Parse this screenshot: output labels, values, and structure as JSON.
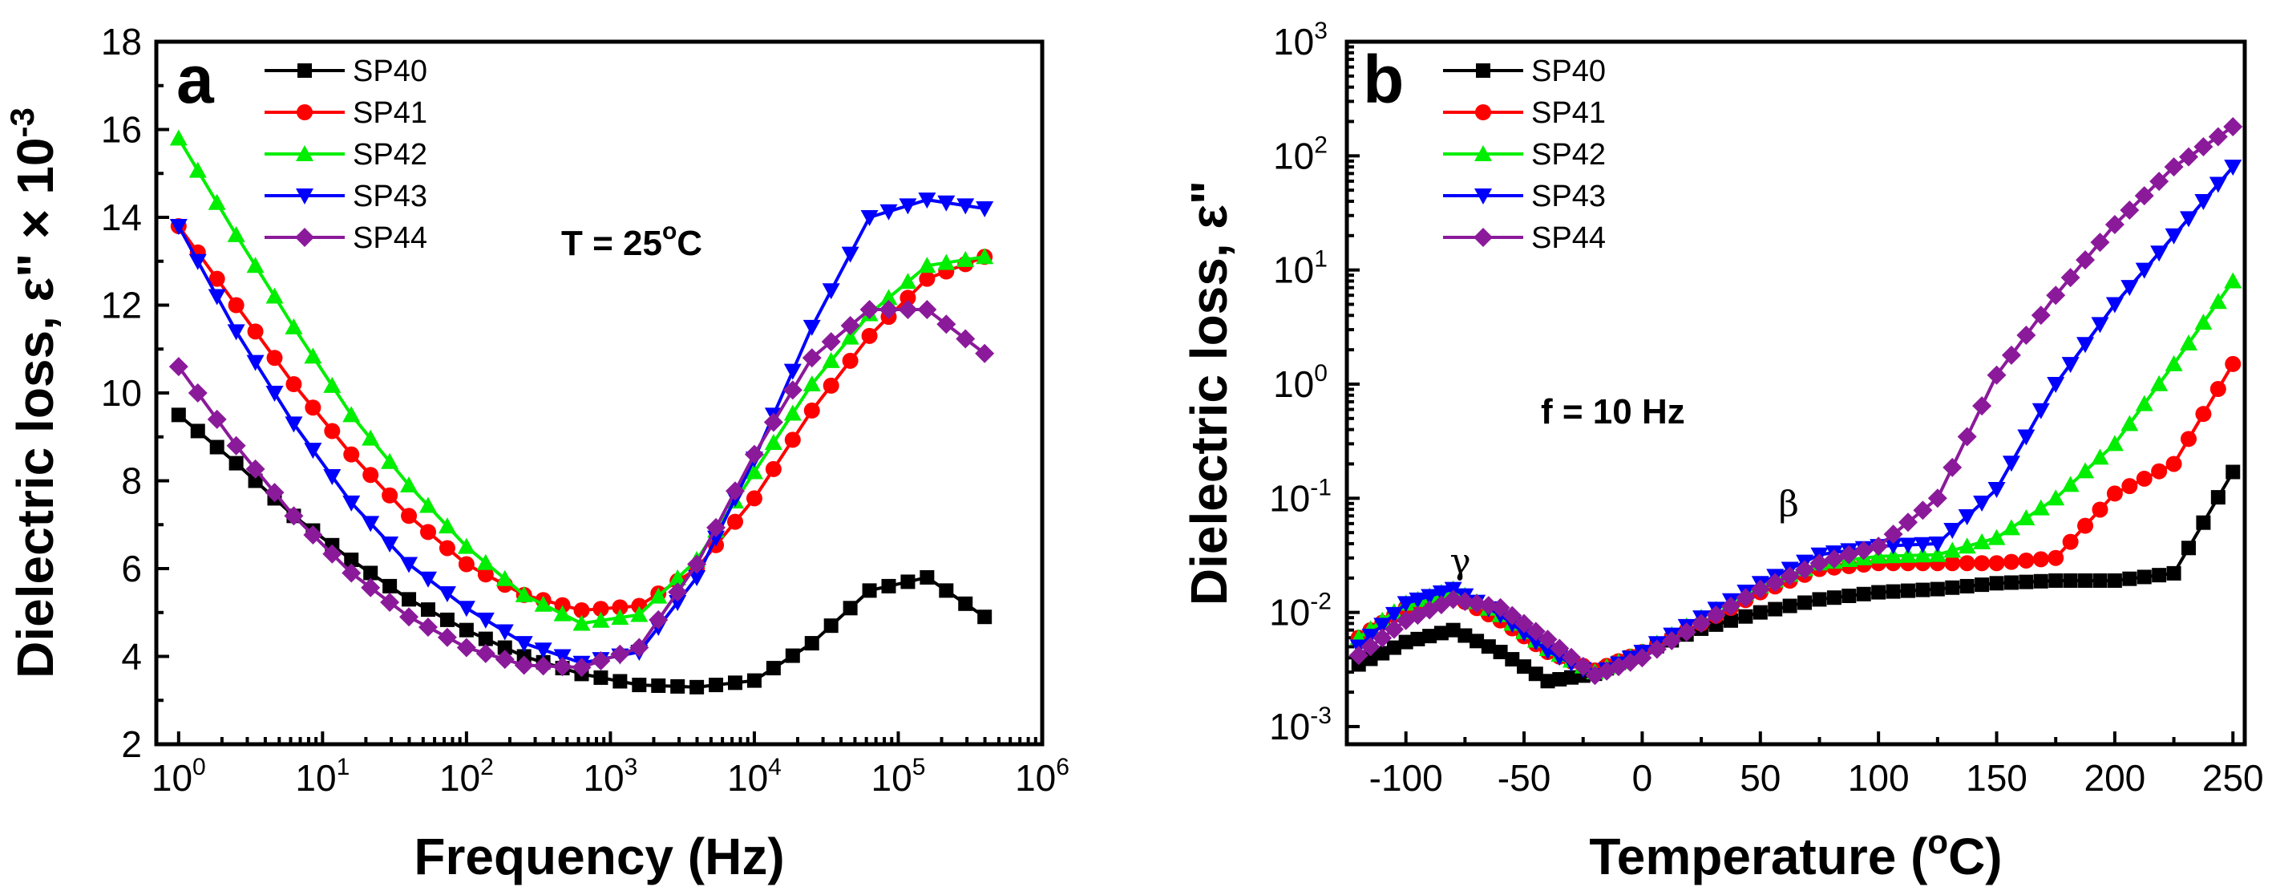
{
  "chart_data": [
    {
      "type": "line",
      "panel_label": "a",
      "xlabel": "Frequency (Hz)",
      "ylabel": "Dielectric loss, ε\" × 10",
      "ylabel_exponent": "-3",
      "xscale": "log",
      "xlim": [
        0.7,
        1000000
      ],
      "ylim": [
        2,
        18
      ],
      "xticks": [
        {
          "base": "10",
          "exp": "0"
        },
        {
          "base": "10",
          "exp": "1"
        },
        {
          "base": "10",
          "exp": "2"
        },
        {
          "base": "10",
          "exp": "3"
        },
        {
          "base": "10",
          "exp": "4"
        },
        {
          "base": "10",
          "exp": "5"
        },
        {
          "base": "10",
          "exp": "6"
        }
      ],
      "yticks": [
        "2",
        "4",
        "6",
        "8",
        "10",
        "12",
        "14",
        "16",
        "18"
      ],
      "legend_position": "top-left",
      "annotation": {
        "text": "T = 25",
        "sup": "o",
        "tail": "C"
      },
      "x": [
        0,
        0.4,
        0.8,
        1.2,
        1.6,
        2.0,
        2.4,
        2.8,
        3.2,
        3.6,
        4.0,
        4.4,
        4.8,
        5.2,
        5.6
      ],
      "series": [
        {
          "name": "SP40",
          "color": "#000000",
          "marker": "square",
          "values": [
            9.5,
            8.4,
            7.2,
            6.2,
            5.3,
            4.6,
            4.0,
            3.6,
            3.35,
            3.3,
            3.45,
            4.3,
            5.5,
            5.8,
            4.9
          ]
        },
        {
          "name": "SP41",
          "color": "#ff0000",
          "marker": "circle",
          "values": [
            13.8,
            12.0,
            10.2,
            8.6,
            7.2,
            6.1,
            5.4,
            5.05,
            5.15,
            6.0,
            7.6,
            9.6,
            11.3,
            12.6,
            13.1
          ]
        },
        {
          "name": "SP42",
          "color": "#00ee00",
          "marker": "triangle-up",
          "values": [
            15.8,
            13.6,
            11.5,
            9.5,
            7.9,
            6.5,
            5.4,
            4.75,
            4.95,
            6.2,
            8.2,
            10.2,
            11.8,
            12.9,
            13.1
          ]
        },
        {
          "name": "SP43",
          "color": "#0000ff",
          "marker": "triangle-down",
          "values": [
            13.8,
            11.4,
            9.3,
            7.5,
            6.1,
            5.1,
            4.3,
            3.85,
            4.1,
            5.8,
            8.5,
            11.5,
            14.0,
            14.4,
            14.2
          ]
        },
        {
          "name": "SP44",
          "color": "#8b1a9b",
          "marker": "diamond",
          "values": [
            10.6,
            8.8,
            7.2,
            5.9,
            4.9,
            4.2,
            3.8,
            3.75,
            4.2,
            6.1,
            8.6,
            10.8,
            11.9,
            11.9,
            10.9
          ]
        }
      ]
    },
    {
      "type": "line",
      "panel_label": "b",
      "xlabel": "Temperature (",
      "xlabel_sup": "o",
      "xlabel_tail": "C)",
      "ylabel": "Dielectric loss, ε\"",
      "yscale": "log",
      "xlim": [
        -125,
        255
      ],
      "ylim": [
        0.0007,
        1000
      ],
      "xticks": [
        "-100",
        "-50",
        "0",
        "50",
        "100",
        "150",
        "200",
        "250"
      ],
      "yticks": [
        {
          "base": "10",
          "exp": "-3"
        },
        {
          "base": "10",
          "exp": "-2"
        },
        {
          "base": "10",
          "exp": "-1"
        },
        {
          "base": "10",
          "exp": "0"
        },
        {
          "base": "10",
          "exp": "1"
        },
        {
          "base": "10",
          "exp": "2"
        },
        {
          "base": "10",
          "exp": "3"
        }
      ],
      "legend_position": "top-left",
      "annotation": {
        "text": "f = 10 Hz"
      },
      "peak_labels": [
        {
          "text": "γ",
          "x": -77,
          "y": 0.022
        },
        {
          "text": "β",
          "x": 62,
          "y": 0.07
        }
      ],
      "x": [
        -120,
        -100,
        -80,
        -60,
        -40,
        -20,
        0,
        25,
        50,
        75,
        100,
        125,
        150,
        175,
        200,
        225,
        250
      ],
      "series": [
        {
          "name": "SP40",
          "color": "#000000",
          "marker": "square",
          "values": [
            0.0035,
            0.0055,
            0.007,
            0.0045,
            0.0025,
            0.0029,
            0.0045,
            0.0072,
            0.01,
            0.013,
            0.015,
            0.016,
            0.018,
            0.019,
            0.019,
            0.022,
            0.17
          ]
        },
        {
          "name": "SP41",
          "color": "#ff0000",
          "marker": "circle",
          "values": [
            0.006,
            0.011,
            0.014,
            0.0085,
            0.0045,
            0.0031,
            0.0045,
            0.008,
            0.015,
            0.024,
            0.027,
            0.027,
            0.027,
            0.03,
            0.11,
            0.2,
            1.5
          ]
        },
        {
          "name": "SP42",
          "color": "#00ee00",
          "marker": "triangle-up",
          "values": [
            0.006,
            0.012,
            0.016,
            0.0095,
            0.0048,
            0.003,
            0.0045,
            0.009,
            0.017,
            0.027,
            0.031,
            0.032,
            0.045,
            0.1,
            0.3,
            1.5,
            8.0
          ]
        },
        {
          "name": "SP43",
          "color": "#0000ff",
          "marker": "triangle-down",
          "values": [
            0.005,
            0.012,
            0.016,
            0.0095,
            0.0046,
            0.0028,
            0.0045,
            0.009,
            0.018,
            0.032,
            0.038,
            0.04,
            0.12,
            1.0,
            5.0,
            20,
            80
          ]
        },
        {
          "name": "SP44",
          "color": "#8b1a9b",
          "marker": "diamond",
          "values": [
            0.0042,
            0.0085,
            0.013,
            0.011,
            0.0058,
            0.0028,
            0.004,
            0.008,
            0.016,
            0.027,
            0.038,
            0.1,
            1.2,
            6.0,
            25,
            80,
            180
          ]
        }
      ]
    }
  ]
}
